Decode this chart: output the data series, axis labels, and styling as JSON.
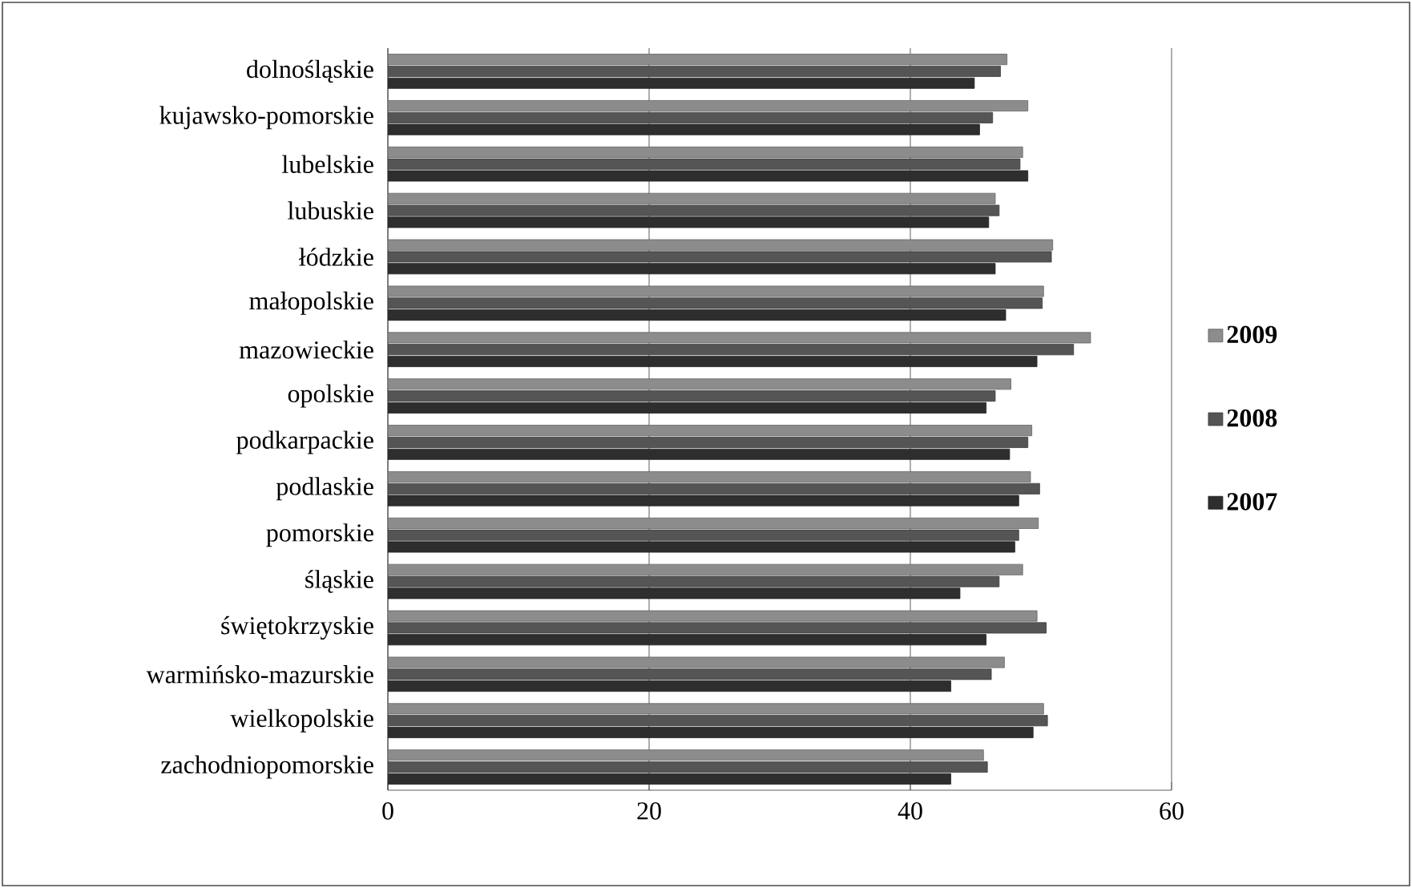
{
  "chart_data": {
    "type": "bar",
    "orientation": "horizontal",
    "categories": [
      "dolnośląskie",
      "kujawsko-pomorskie",
      "lubelskie",
      "lubuskie",
      "łódzkie",
      "małopolskie",
      "mazowieckie",
      "opolskie",
      "podkarpackie",
      "podlaskie",
      "pomorskie",
      "śląskie",
      "świętokrzyskie",
      "warmińsko-mazurskie",
      "wielkopolskie",
      "zachodniopomorskie"
    ],
    "series": [
      {
        "name": "2009",
        "color": "#8c8c8c",
        "values": [
          47.4,
          49.0,
          48.6,
          46.5,
          50.9,
          50.2,
          53.8,
          47.7,
          49.3,
          49.2,
          49.8,
          48.6,
          49.7,
          47.2,
          50.2,
          45.6
        ]
      },
      {
        "name": "2008",
        "color": "#555555",
        "values": [
          46.9,
          46.3,
          48.4,
          46.8,
          50.8,
          50.1,
          52.5,
          46.5,
          49.0,
          49.9,
          48.3,
          46.8,
          50.4,
          46.2,
          50.5,
          45.9
        ]
      },
      {
        "name": "2007",
        "color": "#2e2e2e",
        "values": [
          44.9,
          45.3,
          49.0,
          46.0,
          46.5,
          47.3,
          49.7,
          45.8,
          47.6,
          48.3,
          48.0,
          43.8,
          45.8,
          43.1,
          49.4,
          43.1
        ]
      }
    ],
    "xlim": [
      0,
      60
    ],
    "xticks": [
      0,
      20,
      40,
      60
    ],
    "grid": "x",
    "legend": "right"
  }
}
